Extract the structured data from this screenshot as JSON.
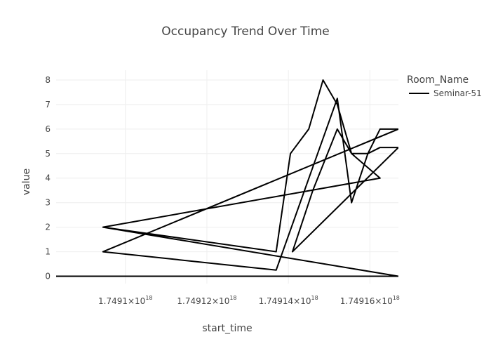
{
  "chart_data": {
    "type": "line",
    "title": "Occupancy Trend Over Time",
    "xlabel": "start_time",
    "ylabel": "value",
    "x_unit": "nanoseconds since epoch",
    "xlim": [
      1749083000000000000,
      1749167000000000000
    ],
    "ylim": [
      -0.3,
      8.4
    ],
    "x_ticks": [
      {
        "value": 1749100000000000000,
        "mantissa": "1.7491×10",
        "exp": "18"
      },
      {
        "value": 1749120000000000000,
        "mantissa": "1.74912×10",
        "exp": "18"
      },
      {
        "value": 1749140000000000000,
        "mantissa": "1.74914×10",
        "exp": "18"
      },
      {
        "value": 1749160000000000000,
        "mantissa": "1.74916×10",
        "exp": "18"
      }
    ],
    "y_ticks": [
      0,
      1,
      2,
      3,
      4,
      5,
      6,
      7,
      8
    ],
    "grid": true,
    "legend": {
      "title": "Room_Name",
      "position": "right"
    },
    "series": [
      {
        "name": "Seminar-51",
        "color": "#000000",
        "x": [
          1749094500000000000,
          1749137000000000000,
          1749140500000000000,
          1749145000000000000,
          1749148500000000000,
          1749152000000000000,
          1749155500000000000,
          1749159500000000000,
          1749162500000000000,
          1749167000000000000,
          1749094500000000000,
          1749137000000000000,
          1749152000000000000,
          1749155500000000000,
          1749159500000000000,
          1749162500000000000,
          1749167000000000000,
          1749141000000000000,
          1749146000000000000,
          1749152000000000000,
          1749155500000000000,
          1749162500000000000,
          1749094500000000000,
          1749167000000000000,
          1749083000000000000
        ],
        "y": [
          2.0,
          1.0,
          5.0,
          6.0,
          8.0,
          7.0,
          5.0,
          5.0,
          6.0,
          6.0,
          1.0,
          0.25,
          7.25,
          3.0,
          5.0,
          5.25,
          5.25,
          1.0,
          3.5,
          6.0,
          5.0,
          4.0,
          2.0,
          0.0,
          0.0
        ],
        "path_order": "connected-in-data-order"
      }
    ]
  }
}
